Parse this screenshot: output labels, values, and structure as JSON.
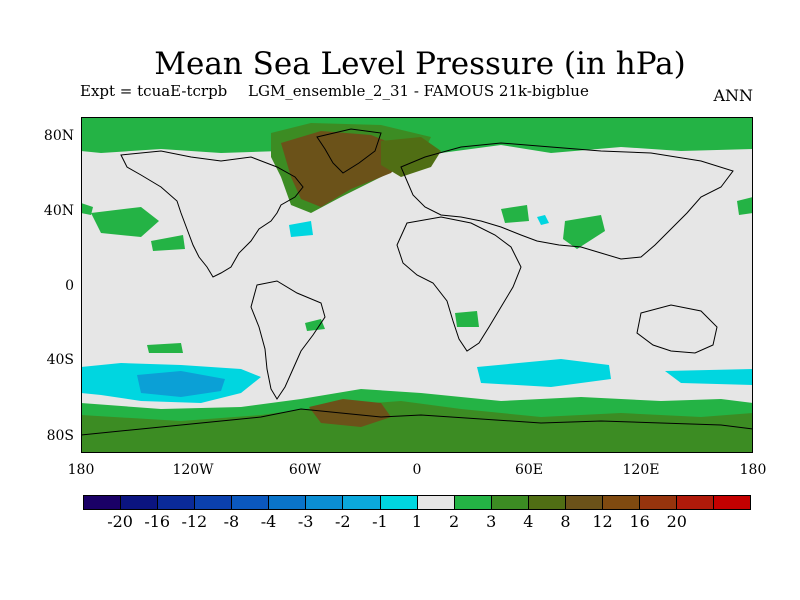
{
  "title": "Mean Sea Level Pressure (in hPa)",
  "subtitle_left": "Expt = tcuaE-tcrpb",
  "subtitle_mid": "LGM_ensemble_2_31 - FAMOUS 21k-bigblue",
  "subtitle_right": "ANN",
  "lat_ticks": [
    "80N",
    "40N",
    "0",
    "40S",
    "80S"
  ],
  "lon_ticks": [
    "180",
    "120W",
    "60W",
    "0",
    "60E",
    "120E",
    "180"
  ],
  "colors": {
    "neutral": "#e6e6e6",
    "green_1": "#24b345",
    "green_2": "#3c8c23",
    "olive_3": "#506e14",
    "brown_4": "#6b5219",
    "cyan_m1": "#00d6e0",
    "blue_m2": "#0ba0d6",
    "coast": "#000000"
  },
  "colorbar": {
    "colors": [
      "#1a0066",
      "#0b1480",
      "#0a2a99",
      "#0b40ad",
      "#0b58be",
      "#0a74c9",
      "#0b8ed3",
      "#0ba8dc",
      "#00d6e0",
      "#e6e6e6",
      "#24b345",
      "#3c8c23",
      "#506e14",
      "#6b5219",
      "#7f4a10",
      "#96340d",
      "#b01a0a",
      "#c40000"
    ],
    "labels": [
      "-20",
      "-16",
      "-12",
      "-8",
      "-4",
      "-3",
      "-2",
      "-1",
      "1",
      "2",
      "3",
      "4",
      "8",
      "12",
      "16",
      "20"
    ]
  }
}
